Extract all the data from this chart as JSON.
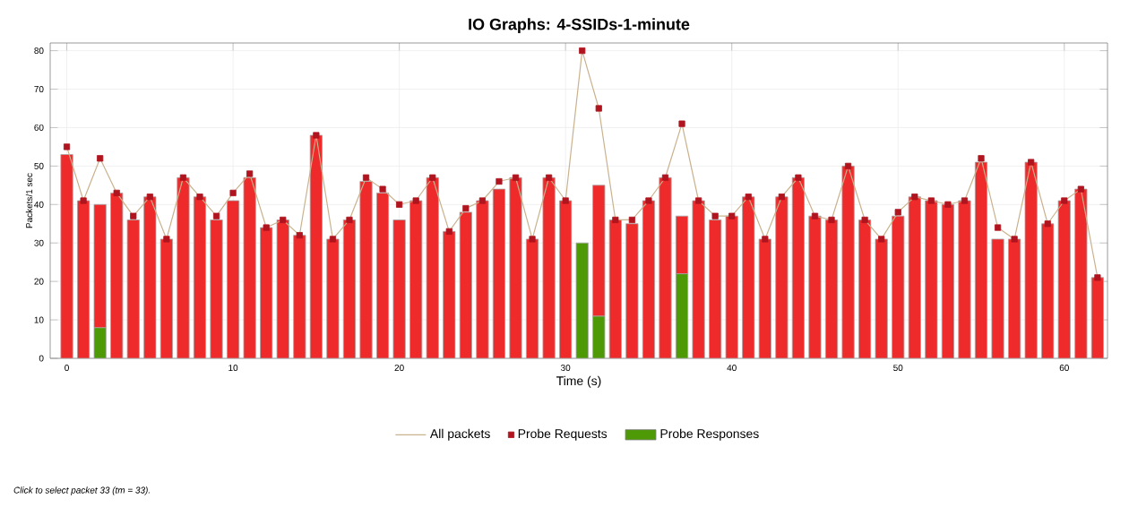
{
  "chart_data": {
    "type": "bar",
    "title": "IO Graphs: 4-SSIDs-1-minute",
    "xlabel": "Time (s)",
    "ylabel": "Packets/1 sec",
    "x": [
      0,
      1,
      2,
      3,
      4,
      5,
      6,
      7,
      8,
      9,
      10,
      11,
      12,
      13,
      14,
      15,
      16,
      17,
      18,
      19,
      20,
      21,
      22,
      23,
      24,
      25,
      26,
      27,
      28,
      29,
      30,
      31,
      32,
      33,
      34,
      35,
      36,
      37,
      38,
      39,
      40,
      41,
      42,
      43,
      44,
      45,
      46,
      47,
      48,
      49,
      50,
      51,
      52,
      53,
      54,
      55,
      56,
      57,
      58,
      59,
      60,
      61,
      62
    ],
    "stacked": true,
    "series": [
      {
        "name": "Probe Responses",
        "color": "#4e9a06",
        "values": [
          null,
          null,
          8,
          null,
          null,
          null,
          null,
          null,
          null,
          null,
          null,
          null,
          null,
          null,
          null,
          null,
          null,
          null,
          null,
          null,
          null,
          null,
          null,
          null,
          null,
          null,
          null,
          null,
          null,
          null,
          null,
          30,
          11,
          null,
          null,
          null,
          null,
          22,
          null,
          null,
          null,
          null,
          null,
          null,
          null,
          null,
          null,
          null,
          null,
          null,
          null,
          null,
          null,
          null,
          null,
          null,
          null,
          null,
          null,
          null,
          null,
          null,
          null
        ]
      },
      {
        "color": "#ee2a2a",
        "values": [
          53,
          41,
          32,
          43,
          36,
          42,
          31,
          47,
          42,
          36,
          41,
          47,
          34,
          36,
          32,
          58,
          31,
          36,
          46,
          43,
          36,
          41,
          47,
          33,
          38,
          41,
          44,
          47,
          31,
          47,
          41,
          null,
          34,
          36,
          35,
          41,
          47,
          15,
          41,
          36,
          37,
          42,
          31,
          42,
          47,
          37,
          36,
          50,
          36,
          31,
          37,
          42,
          41,
          40,
          41,
          51,
          31,
          31,
          51,
          35,
          41,
          44,
          21
        ]
      },
      {
        "name": "All packets",
        "type": "line",
        "color": "#c9b28e",
        "marker": "none",
        "line_style": "solid",
        "values": [
          55,
          41,
          52,
          43,
          37,
          42,
          31,
          47,
          42,
          37,
          43,
          48,
          34,
          36,
          32,
          58,
          31,
          36,
          47,
          44,
          40,
          41,
          47,
          33,
          39,
          41,
          46,
          47,
          31,
          47,
          41,
          80,
          65,
          36,
          36,
          41,
          47,
          61,
          41,
          37,
          37,
          42,
          31,
          42,
          47,
          37,
          36,
          50,
          36,
          31,
          38,
          42,
          41,
          40,
          41,
          52,
          34,
          31,
          51,
          35,
          41,
          44,
          21
        ]
      },
      {
        "name": "Probe Requests",
        "type": "scatter",
        "color": "#b0141e",
        "marker": "square",
        "values": [
          55,
          41,
          52,
          43,
          37,
          42,
          31,
          47,
          42,
          37,
          43,
          48,
          34,
          36,
          32,
          58,
          31,
          36,
          47,
          44,
          40,
          41,
          47,
          33,
          39,
          41,
          46,
          47,
          31,
          47,
          41,
          80,
          65,
          36,
          36,
          41,
          47,
          61,
          41,
          37,
          37,
          42,
          31,
          42,
          47,
          37,
          36,
          50,
          36,
          31,
          38,
          42,
          41,
          40,
          41,
          52,
          34,
          31,
          51,
          35,
          41,
          44,
          21
        ]
      }
    ],
    "xlim": [
      -1,
      62.6
    ],
    "ylim": [
      0,
      82
    ],
    "xticks": [
      0,
      10,
      20,
      30,
      40,
      50,
      60
    ],
    "yticks": [
      0,
      10,
      20,
      30,
      40,
      50,
      60,
      70,
      80
    ],
    "grid": true,
    "legend": "bottom",
    "annotations": [
      "Click to select packet 33 (tm = 33)."
    ]
  }
}
